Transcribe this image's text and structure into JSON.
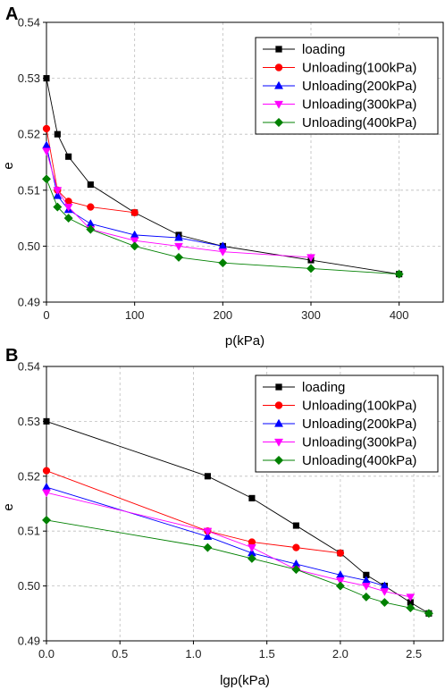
{
  "chart_data": [
    {
      "type": "line",
      "panel_label": "A",
      "xlabel": "p(kPa)",
      "ylabel": "e",
      "xlim": [
        0,
        450
      ],
      "ylim": [
        0.49,
        0.54
      ],
      "xticks": [
        0,
        100,
        200,
        300,
        400
      ],
      "yticks": [
        0.49,
        0.5,
        0.51,
        0.52,
        0.53,
        0.54
      ],
      "xtick_labels": [
        "0",
        "100",
        "200",
        "300",
        "400"
      ],
      "ytick_labels": [
        "0.49",
        "0.50",
        "0.51",
        "0.52",
        "0.53",
        "0.54"
      ],
      "grid": true,
      "legend_position": "top-right",
      "series": [
        {
          "name": "loading",
          "color": "#000000",
          "marker": "square",
          "x": [
            0,
            12.5,
            25,
            50,
            100,
            150,
            200,
            300,
            400
          ],
          "y": [
            0.53,
            0.52,
            0.516,
            0.511,
            0.506,
            0.502,
            0.5,
            0.4975,
            0.495
          ]
        },
        {
          "name": "Unloading(100kPa)",
          "color": "#ff0000",
          "marker": "circle",
          "x": [
            100,
            50,
            25,
            12.5,
            0
          ],
          "y": [
            0.506,
            0.507,
            0.508,
            0.51,
            0.521
          ]
        },
        {
          "name": "Unloading(200kPa)",
          "color": "#0000ff",
          "marker": "triangle-up",
          "x": [
            200,
            150,
            100,
            50,
            25,
            12.5,
            0
          ],
          "y": [
            0.5,
            0.5015,
            0.502,
            0.504,
            0.5065,
            0.509,
            0.518
          ]
        },
        {
          "name": "Unloading(300kPa)",
          "color": "#ff00ff",
          "marker": "triangle-down",
          "x": [
            300,
            200,
            150,
            100,
            50,
            25,
            12.5,
            0
          ],
          "y": [
            0.498,
            0.499,
            0.5,
            0.501,
            0.503,
            0.507,
            0.51,
            0.517
          ]
        },
        {
          "name": "Unloading(400kPa)",
          "color": "#008000",
          "marker": "diamond",
          "x": [
            400,
            300,
            200,
            150,
            100,
            50,
            25,
            12.5,
            0
          ],
          "y": [
            0.495,
            0.496,
            0.497,
            0.498,
            0.5,
            0.503,
            0.505,
            0.507,
            0.512
          ]
        }
      ]
    },
    {
      "type": "line",
      "panel_label": "B",
      "xlabel": "lgp(kPa)",
      "ylabel": "e",
      "xlim": [
        0,
        2.7
      ],
      "ylim": [
        0.49,
        0.54
      ],
      "xticks": [
        0,
        0.5,
        1.0,
        1.5,
        2.0,
        2.5
      ],
      "yticks": [
        0.49,
        0.5,
        0.51,
        0.52,
        0.53,
        0.54
      ],
      "xtick_labels": [
        "0.0",
        "0.5",
        "1.0",
        "1.5",
        "2.0",
        "2.5"
      ],
      "ytick_labels": [
        "0.49",
        "0.50",
        "0.51",
        "0.52",
        "0.53",
        "0.54"
      ],
      "grid": true,
      "legend_position": "top-right",
      "series": [
        {
          "name": "loading",
          "color": "#000000",
          "marker": "square",
          "x": [
            0,
            1.097,
            1.398,
            1.699,
            2.0,
            2.176,
            2.301,
            2.477,
            2.602
          ],
          "y": [
            0.53,
            0.52,
            0.516,
            0.511,
            0.506,
            0.502,
            0.5,
            0.497,
            0.495
          ]
        },
        {
          "name": "Unloading(100kPa)",
          "color": "#ff0000",
          "marker": "circle",
          "x": [
            2.0,
            1.699,
            1.398,
            1.097,
            0
          ],
          "y": [
            0.506,
            0.507,
            0.508,
            0.51,
            0.521
          ]
        },
        {
          "name": "Unloading(200kPa)",
          "color": "#0000ff",
          "marker": "triangle-up",
          "x": [
            2.301,
            2.176,
            2.0,
            1.699,
            1.398,
            1.097,
            0
          ],
          "y": [
            0.5,
            0.501,
            0.502,
            0.504,
            0.506,
            0.509,
            0.518
          ]
        },
        {
          "name": "Unloading(300kPa)",
          "color": "#ff00ff",
          "marker": "triangle-down",
          "x": [
            2.477,
            2.301,
            2.176,
            2.0,
            1.699,
            1.398,
            1.097,
            0
          ],
          "y": [
            0.498,
            0.499,
            0.5,
            0.501,
            0.503,
            0.507,
            0.51,
            0.517
          ]
        },
        {
          "name": "Unloading(400kPa)",
          "color": "#008000",
          "marker": "diamond",
          "x": [
            2.602,
            2.477,
            2.301,
            2.176,
            2.0,
            1.699,
            1.398,
            1.097,
            0
          ],
          "y": [
            0.495,
            0.496,
            0.497,
            0.498,
            0.5,
            0.503,
            0.505,
            0.507,
            0.512
          ]
        }
      ]
    }
  ]
}
